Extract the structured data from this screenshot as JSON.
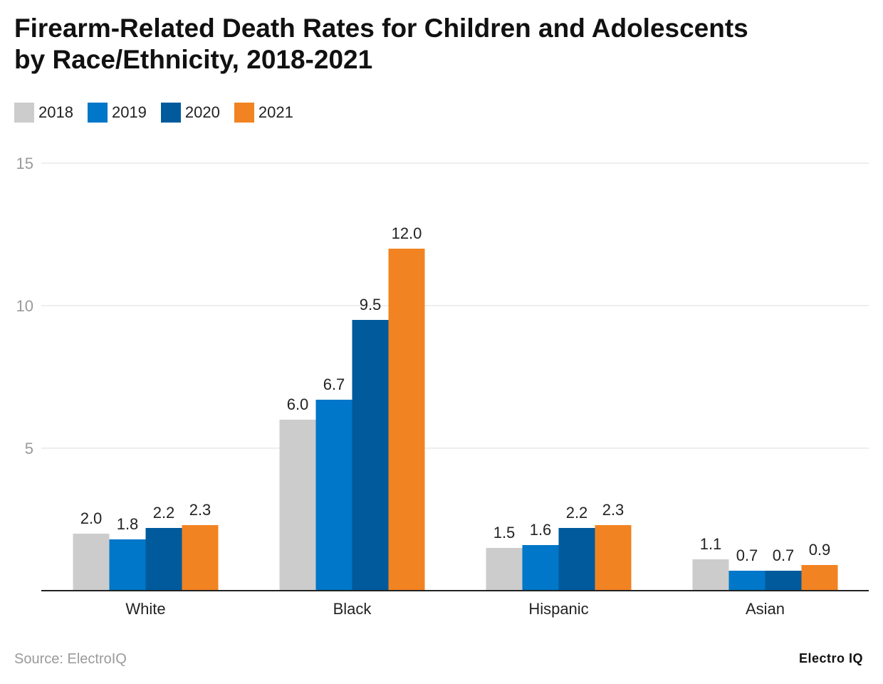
{
  "title_lines": [
    "Firearm-Related Death Rates for Children and Adolescents",
    "by Race/Ethnicity, 2018-2021"
  ],
  "source": "Source: ElectroIQ",
  "brand": "Electro IQ",
  "chart_data": {
    "type": "bar",
    "title": "Firearm-Related Death Rates for Children and Adolescents by Race/Ethnicity, 2018-2021",
    "categories": [
      "White",
      "Black",
      "Hispanic",
      "Asian"
    ],
    "series": [
      {
        "name": "2018",
        "color": "#cccccc",
        "values": [
          2.0,
          6.0,
          1.5,
          1.1
        ]
      },
      {
        "name": "2019",
        "color": "#0077c8",
        "values": [
          1.8,
          6.7,
          1.6,
          0.7
        ]
      },
      {
        "name": "2020",
        "color": "#005a9c",
        "values": [
          2.2,
          9.5,
          2.2,
          0.7
        ]
      },
      {
        "name": "2021",
        "color": "#f28322",
        "values": [
          2.3,
          12.0,
          2.3,
          0.9
        ]
      }
    ],
    "ylim": [
      0,
      15
    ],
    "yticks": [
      5,
      10,
      15
    ],
    "xlabel": "",
    "ylabel": "",
    "grid": true,
    "legend": "top-left"
  }
}
